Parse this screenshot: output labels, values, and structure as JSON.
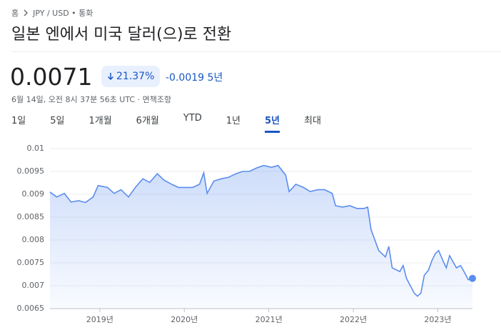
{
  "breadcrumb": {
    "home": "홈",
    "current": "JPY / USD • 통화"
  },
  "header": {
    "title": "일본 엔에서 미국 달러(으)로 전환"
  },
  "quote": {
    "price": "0.0071",
    "change_percent": "21.37%",
    "change": "-0.0019",
    "period": "5년",
    "timestamp": "6월 14일, 오전 8시 37분 56초 UTC",
    "disclaimer": "면책조항"
  },
  "tabs": [
    "1일",
    "5일",
    "1개월",
    "6개월",
    "YTD",
    "1년",
    "5년",
    "최대"
  ],
  "selected_tab": "5년",
  "chart_data": {
    "type": "line",
    "color": "#5b8def",
    "grid": true,
    "xlim": [
      2018.41,
      2023.41
    ],
    "xticks": [
      {
        "value": 2019,
        "label": "2019년"
      },
      {
        "value": 2020,
        "label": "2020년"
      },
      {
        "value": 2021,
        "label": "2021년"
      },
      {
        "value": 2022,
        "label": "2022년"
      },
      {
        "value": 2023,
        "label": "2023년"
      }
    ],
    "ylim": [
      0.0065,
      0.01
    ],
    "yticks": [
      0.0065,
      0.007,
      0.0075,
      0.008,
      0.0085,
      0.009,
      0.0095,
      0.01
    ],
    "x": [
      2018.41,
      2018.49,
      2018.58,
      2018.66,
      2018.75,
      2018.83,
      2018.92,
      2018.98,
      2019.09,
      2019.17,
      2019.25,
      2019.34,
      2019.42,
      2019.51,
      2019.59,
      2019.68,
      2019.76,
      2019.85,
      2019.93,
      2020.01,
      2020.1,
      2020.18,
      2020.23,
      2020.27,
      2020.35,
      2020.44,
      2020.52,
      2020.61,
      2020.69,
      2020.77,
      2020.86,
      2020.94,
      2021.03,
      2021.11,
      2021.2,
      2021.24,
      2021.32,
      2021.41,
      2021.49,
      2021.58,
      2021.66,
      2021.75,
      2021.79,
      2021.87,
      2021.96,
      2022.04,
      2022.13,
      2022.17,
      2022.21,
      2022.3,
      2022.38,
      2022.42,
      2022.46,
      2022.55,
      2022.59,
      2022.63,
      2022.72,
      2022.76,
      2022.8,
      2022.84,
      2022.89,
      2022.93,
      2022.97,
      2023.01,
      2023.06,
      2023.1,
      2023.14,
      2023.22,
      2023.27,
      2023.31,
      2023.36,
      2023.41
    ],
    "values": [
      0.00905,
      0.00894,
      0.00902,
      0.00883,
      0.00886,
      0.00882,
      0.00894,
      0.00919,
      0.00915,
      0.00902,
      0.0091,
      0.00894,
      0.00915,
      0.00934,
      0.00926,
      0.00945,
      0.00931,
      0.00922,
      0.00915,
      0.00915,
      0.00915,
      0.00922,
      0.00947,
      0.00902,
      0.00929,
      0.00934,
      0.00937,
      0.00945,
      0.0095,
      0.0095,
      0.00958,
      0.00963,
      0.00959,
      0.00963,
      0.00942,
      0.00906,
      0.00922,
      0.00915,
      0.00906,
      0.0091,
      0.0091,
      0.00902,
      0.00875,
      0.00872,
      0.00875,
      0.00869,
      0.00869,
      0.00872,
      0.00823,
      0.00777,
      0.00763,
      0.00786,
      0.00739,
      0.00731,
      0.00744,
      0.00716,
      0.00684,
      0.00677,
      0.00684,
      0.00723,
      0.00734,
      0.00755,
      0.0077,
      0.00777,
      0.00755,
      0.00739,
      0.00766,
      0.00739,
      0.00744,
      0.00731,
      0.00713,
      0.00716
    ]
  }
}
